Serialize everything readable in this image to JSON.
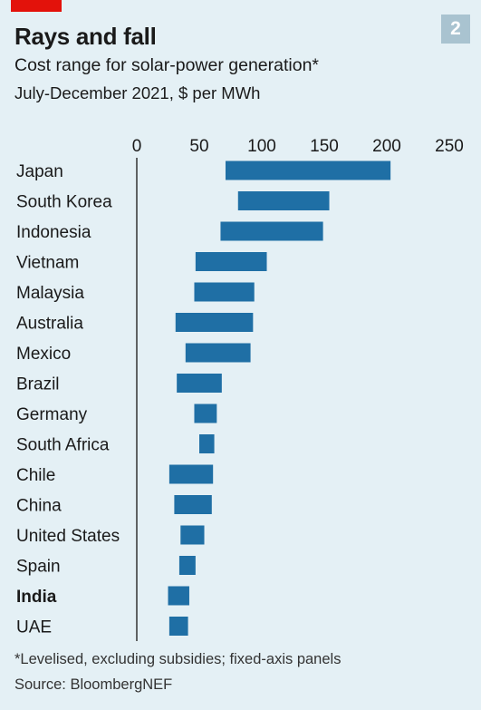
{
  "header": {
    "badge": "2",
    "title": "Rays and fall",
    "subtitle": "Cost range for solar-power generation*",
    "units": "July-December 2021, $ per MWh"
  },
  "footer": {
    "footnote": "*Levelised, excluding subsidies; fixed-axis panels",
    "source": "Source: BloombergNEF"
  },
  "colors": {
    "bar": "#1f6fa5",
    "background": "#e4f0f5",
    "accent": "#e3120b",
    "badge": "#a9c3d0"
  },
  "chart_data": {
    "type": "bar",
    "orientation": "horizontal-range",
    "xlim": [
      0,
      250
    ],
    "xticks": [
      0,
      50,
      100,
      150,
      200,
      250
    ],
    "grid": false,
    "highlight": "India",
    "categories": [
      "Japan",
      "South Korea",
      "Indonesia",
      "Vietnam",
      "Malaysia",
      "Australia",
      "Mexico",
      "Brazil",
      "Germany",
      "South Africa",
      "Chile",
      "China",
      "United States",
      "Spain",
      "India",
      "UAE"
    ],
    "ranges": [
      [
        71,
        203
      ],
      [
        81,
        154
      ],
      [
        67,
        149
      ],
      [
        47,
        104
      ],
      [
        46,
        94
      ],
      [
        31,
        93
      ],
      [
        39,
        91
      ],
      [
        32,
        68
      ],
      [
        46,
        64
      ],
      [
        50,
        62
      ],
      [
        26,
        61
      ],
      [
        30,
        60
      ],
      [
        35,
        54
      ],
      [
        34,
        47
      ],
      [
        25,
        42
      ],
      [
        26,
        41
      ]
    ]
  }
}
